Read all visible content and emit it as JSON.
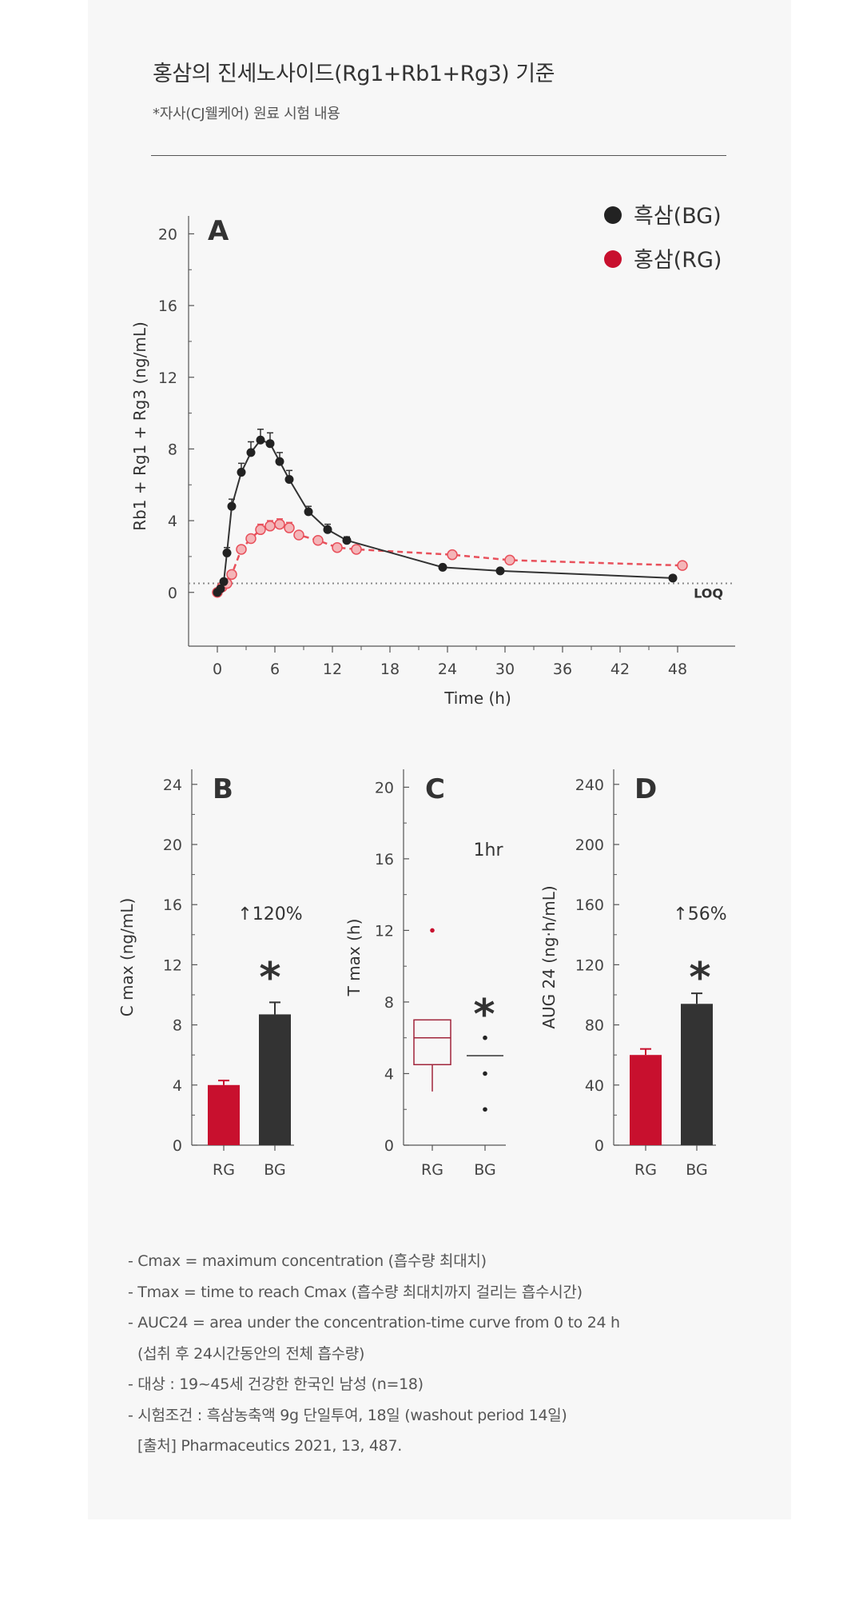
{
  "header": {
    "title": "홍삼의 진세노사이드(Rg1+Rb1+Rg3) 기준",
    "subtitle": "*자사(CJ웰케어) 원료 시험 내용"
  },
  "colors": {
    "bg": "#f7f7f7",
    "bg_series": "#333333",
    "rg_series": "#c8102e",
    "rg_line": "#e8505b"
  },
  "chart_data": [
    {
      "panel": "A",
      "type": "line",
      "ylabel": "Rb1 + Rg1 + Rg3 (ng/mL)",
      "xlabel": "Time (h)",
      "ylim": [
        -3,
        21
      ],
      "xlim": [
        -3,
        54
      ],
      "yticks": [
        0,
        4,
        8,
        12,
        16,
        20
      ],
      "yticks_minor": [
        2,
        6,
        10,
        14,
        18
      ],
      "xticks": [
        0,
        6,
        12,
        18,
        24,
        30,
        36,
        42,
        48
      ],
      "loq": {
        "value": 0.5,
        "label": "LOQ"
      },
      "legend": {
        "position": "top-right"
      },
      "series": [
        {
          "name": "흑삼(BG)",
          "color": "#333333",
          "style": "solid",
          "x": [
            0,
            0.33,
            0.67,
            1,
            1.5,
            2.5,
            3.5,
            4.5,
            5.5,
            6.5,
            7.5,
            9.5,
            11.5,
            13.5,
            23.5,
            29.5,
            47.5
          ],
          "y": [
            0,
            0.2,
            0.6,
            2.2,
            4.8,
            6.7,
            7.8,
            8.5,
            8.3,
            7.3,
            6.3,
            4.5,
            3.5,
            2.9,
            1.4,
            1.2,
            0.8
          ],
          "err": [
            0,
            0,
            0,
            0.3,
            0.4,
            0.5,
            0.6,
            0.6,
            0.6,
            0.5,
            0.5,
            0.3,
            0.3,
            0.2,
            0.1,
            0.1,
            0.1
          ]
        },
        {
          "name": "홍삼(RG)",
          "color": "#e8505b",
          "style": "dashed",
          "x": [
            0,
            0.5,
            1,
            1.5,
            2.5,
            3.5,
            4.5,
            5.5,
            6.5,
            7.5,
            8.5,
            10.5,
            12.5,
            14.5,
            24.5,
            30.5,
            48.5
          ],
          "y": [
            0,
            0.3,
            0.5,
            1.0,
            2.4,
            3.0,
            3.5,
            3.7,
            3.8,
            3.6,
            3.2,
            2.9,
            2.5,
            2.4,
            2.1,
            1.8,
            1.5
          ],
          "err": [
            0,
            0,
            0,
            0.1,
            0.2,
            0.2,
            0.3,
            0.3,
            0.3,
            0.3,
            0.2,
            0.2,
            0.2,
            0.2,
            0.2,
            0.2,
            0.1
          ]
        }
      ]
    },
    {
      "panel": "B",
      "type": "bar",
      "ylabel": "C max (ng/mL)",
      "ylim": [
        0,
        25
      ],
      "yticks": [
        0,
        4,
        8,
        12,
        16,
        20,
        24
      ],
      "yticks_minor": [
        2,
        6,
        10,
        14,
        18,
        22
      ],
      "categories": [
        "RG",
        "BG"
      ],
      "values": [
        4.0,
        8.7
      ],
      "err": [
        0.3,
        0.8
      ],
      "annotation": "↑120%",
      "sig": "*"
    },
    {
      "panel": "C",
      "type": "box",
      "ylabel": "T max (h)",
      "ylim": [
        0,
        21
      ],
      "yticks": [
        0,
        4,
        8,
        12,
        16,
        20
      ],
      "yticks_minor": [
        2,
        6,
        10,
        14,
        18
      ],
      "categories": [
        "RG",
        "BG"
      ],
      "rg_box": {
        "q1": 4.5,
        "median": 6,
        "q3": 7,
        "whisker_low": 3,
        "whisker_high": 7,
        "outliers": [
          12
        ]
      },
      "bg_box": {
        "median": 5,
        "points": [
          6,
          4,
          2
        ]
      },
      "annotation": "1hr",
      "sig": "*"
    },
    {
      "panel": "D",
      "type": "bar",
      "ylabel": "AUG 24 (ng·h/mL)",
      "ylim": [
        0,
        250
      ],
      "yticks": [
        0,
        40,
        80,
        120,
        160,
        200,
        240
      ],
      "yticks_minor": [
        20,
        60,
        100,
        140,
        180,
        220
      ],
      "categories": [
        "RG",
        "BG"
      ],
      "values": [
        60,
        94
      ],
      "err": [
        4,
        7
      ],
      "annotation": "↑56%",
      "sig": "*"
    }
  ],
  "notes": [
    "- Cmax = maximum concentration (흡수량 최대치)",
    "- Tmax = time to reach Cmax (흡수량 최대치까지 걸리는 흡수시간)",
    "- AUC24 = area under the concentration-time curve from 0 to 24 h",
    "(섭취 후 24시간동안의 전체 흡수량)",
    "- 대상 : 19~45세 건강한 한국인 남성 (n=18)",
    "- 시험조건 : 흑삼농축액 9g 단일투여, 18일 (washout period 14일)",
    "[출처] Pharmaceutics 2021, 13, 487."
  ]
}
